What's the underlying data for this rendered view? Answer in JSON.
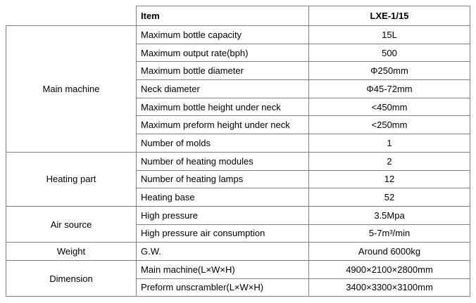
{
  "header": {
    "item": "Item",
    "model": "LXE-1/15"
  },
  "groups": [
    {
      "name": "Main machine",
      "rows": [
        [
          "Maximum bottle capacity",
          "15L"
        ],
        [
          "Maximum output rate(bph)",
          "500"
        ],
        [
          "Maximum bottle diameter",
          "Φ250mm"
        ],
        [
          "Neck diameter",
          "Φ45-72mm"
        ],
        [
          "Maximum bottle height under neck",
          "<450mm"
        ],
        [
          "Maximum preform height under neck",
          "<250mm"
        ],
        [
          "Number of molds",
          "1"
        ]
      ]
    },
    {
      "name": "Heating part",
      "rows": [
        [
          "Number of heating modules",
          "2"
        ],
        [
          "Number of heating lamps",
          "12"
        ],
        [
          "Heating base",
          "52"
        ]
      ]
    },
    {
      "name": "Air source",
      "rows": [
        [
          "High pressure",
          "3.5Mpa"
        ],
        [
          "High pressure air consumption",
          "5-7m³/min"
        ]
      ]
    },
    {
      "name": "Weight",
      "rows": [
        [
          "G.W.",
          "Around 6000kg"
        ]
      ]
    },
    {
      "name": "Dimension",
      "rows": [
        [
          "Main machine(L×W×H)",
          "4900×2100×2800mm"
        ],
        [
          "Preform unscrambler(L×W×H)",
          "3400×3300×3100mm"
        ]
      ]
    }
  ]
}
